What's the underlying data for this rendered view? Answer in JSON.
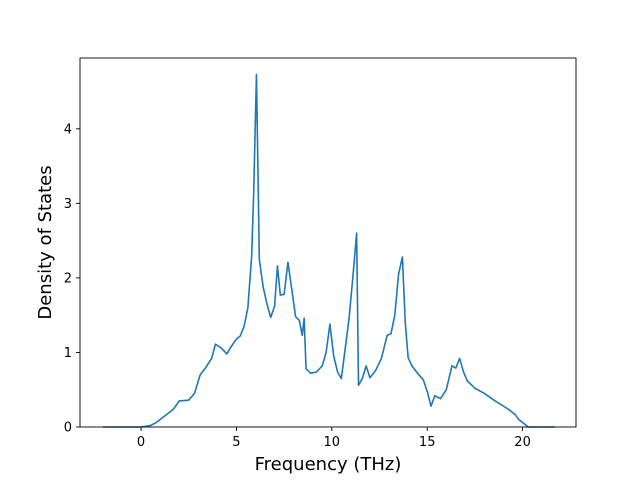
{
  "chart_data": {
    "type": "line",
    "title": "",
    "xlabel": "Frequency (THz)",
    "ylabel": "Density of States",
    "xlim": [
      -3.2,
      22.8
    ],
    "ylim": [
      0,
      4.95
    ],
    "x_ticks": [
      0,
      5,
      10,
      15,
      20
    ],
    "y_ticks": [
      0,
      1,
      2,
      3,
      4
    ],
    "x_tick_labels": [
      "0",
      "5",
      "10",
      "15",
      "20"
    ],
    "y_tick_labels": [
      "0",
      "1",
      "2",
      "3",
      "4"
    ],
    "grid": false,
    "legend": "none",
    "series": [
      {
        "color": "#1f77b4",
        "x": [
          -2.0,
          -1.0,
          0.0,
          0.5,
          0.8,
          1.1,
          1.4,
          1.7,
          2.0,
          2.5,
          2.8,
          3.1,
          3.4,
          3.7,
          3.9,
          4.2,
          4.5,
          4.7,
          5.0,
          5.2,
          5.4,
          5.6,
          5.8,
          5.9,
          6.05,
          6.2,
          6.4,
          6.6,
          6.8,
          7.0,
          7.15,
          7.3,
          7.5,
          7.7,
          7.9,
          8.1,
          8.3,
          8.45,
          8.55,
          8.65,
          8.9,
          9.2,
          9.5,
          9.7,
          9.9,
          10.1,
          10.3,
          10.5,
          10.7,
          10.9,
          11.1,
          11.3,
          11.4,
          11.6,
          11.8,
          12.0,
          12.3,
          12.6,
          12.9,
          13.1,
          13.3,
          13.5,
          13.7,
          13.85,
          14.0,
          14.2,
          14.5,
          14.8,
          15.0,
          15.2,
          15.4,
          15.7,
          16.0,
          16.3,
          16.5,
          16.7,
          16.9,
          17.1,
          17.5,
          18.0,
          18.5,
          19.0,
          19.3,
          19.6,
          19.8,
          20.3,
          21.0,
          21.7
        ],
        "y": [
          0.0,
          0.0,
          0.0,
          0.02,
          0.06,
          0.12,
          0.18,
          0.24,
          0.35,
          0.36,
          0.45,
          0.7,
          0.8,
          0.92,
          1.11,
          1.06,
          0.98,
          1.07,
          1.18,
          1.22,
          1.35,
          1.6,
          2.3,
          3.1,
          4.73,
          2.25,
          1.88,
          1.65,
          1.47,
          1.62,
          2.16,
          1.77,
          1.78,
          2.21,
          1.85,
          1.48,
          1.43,
          1.23,
          1.46,
          0.78,
          0.72,
          0.74,
          0.82,
          1.0,
          1.38,
          0.95,
          0.74,
          0.65,
          1.05,
          1.45,
          2.0,
          2.6,
          0.56,
          0.65,
          0.82,
          0.66,
          0.76,
          0.92,
          1.23,
          1.25,
          1.5,
          2.05,
          2.28,
          1.4,
          0.93,
          0.82,
          0.72,
          0.63,
          0.48,
          0.28,
          0.42,
          0.38,
          0.5,
          0.82,
          0.79,
          0.92,
          0.74,
          0.62,
          0.52,
          0.45,
          0.36,
          0.28,
          0.23,
          0.17,
          0.1,
          0.0,
          0.0,
          0.0
        ]
      }
    ]
  }
}
